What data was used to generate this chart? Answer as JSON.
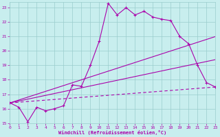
{
  "xlabel": "Windchill (Refroidissement éolien,°C)",
  "bg_color": "#c8eeee",
  "line_color": "#aa00aa",
  "grid_color": "#99cccc",
  "xlim": [
    0,
    23
  ],
  "ylim": [
    15,
    23.4
  ],
  "yticks": [
    15,
    16,
    17,
    18,
    19,
    20,
    21,
    22,
    23
  ],
  "xticks": [
    0,
    1,
    2,
    3,
    4,
    5,
    6,
    7,
    8,
    9,
    10,
    11,
    12,
    13,
    14,
    15,
    16,
    17,
    18,
    19,
    20,
    21,
    22,
    23
  ],
  "curve_x": [
    0,
    1,
    2,
    3,
    4,
    5,
    6,
    7,
    8,
    9,
    10,
    11,
    12,
    13,
    14,
    15,
    16,
    17,
    18,
    19,
    20,
    21,
    22,
    23
  ],
  "curve_y": [
    16.4,
    16.1,
    15.1,
    16.1,
    15.85,
    16.0,
    16.2,
    17.65,
    17.55,
    19.0,
    20.7,
    23.3,
    22.5,
    23.0,
    22.5,
    22.75,
    22.35,
    22.2,
    22.1,
    21.0,
    20.5,
    19.0,
    17.8,
    17.5
  ],
  "line2_x": [
    0,
    23
  ],
  "line2_y": [
    16.4,
    21.0
  ],
  "line3_x": [
    0,
    23
  ],
  "line3_y": [
    16.4,
    19.4
  ],
  "line4_x": [
    0,
    23
  ],
  "line4_y": [
    16.4,
    17.5
  ]
}
